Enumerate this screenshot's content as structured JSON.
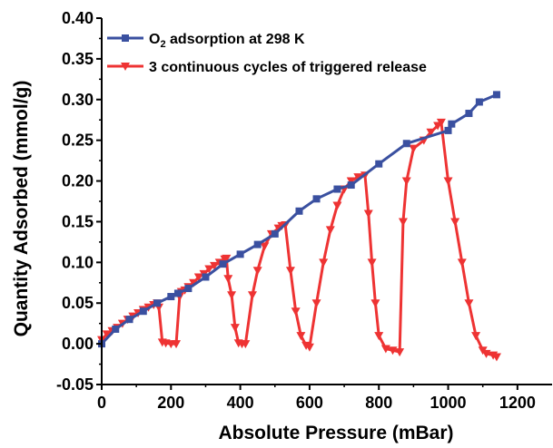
{
  "chart_data": {
    "type": "line",
    "xlabel": "Absolute Pressure (mBar)",
    "ylabel": "Quantity Adsorbed (mmol/g)",
    "xlim": [
      0,
      1300
    ],
    "ylim": [
      -0.05,
      0.4
    ],
    "x_ticks": [
      0,
      200,
      400,
      600,
      800,
      1000,
      1200
    ],
    "y_ticks": [
      -0.05,
      0.0,
      0.05,
      0.1,
      0.15,
      0.2,
      0.25,
      0.3,
      0.35,
      0.4
    ],
    "x_tick_labels": [
      "0",
      "200",
      "400",
      "600",
      "800",
      "1000",
      "1200"
    ],
    "y_tick_labels": [
      "-0.05",
      "0.00",
      "0.05",
      "0.10",
      "0.15",
      "0.20",
      "0.25",
      "0.30",
      "0.35",
      "0.40"
    ],
    "grid": false,
    "legend_position": "top-left",
    "series": [
      {
        "name": "O2 adsorption at 298 K",
        "name_main": "O",
        "name_sub": "2",
        "name_rest": " adsorption at 298 K",
        "color": "#3a50a0",
        "marker": "square",
        "x": [
          0,
          40,
          80,
          120,
          160,
          200,
          220,
          250,
          300,
          350,
          400,
          450,
          500,
          570,
          620,
          680,
          720,
          800,
          880,
          1000,
          1010,
          1060,
          1090,
          1140
        ],
        "y": [
          0.0,
          0.018,
          0.03,
          0.04,
          0.05,
          0.058,
          0.062,
          0.068,
          0.082,
          0.098,
          0.11,
          0.122,
          0.135,
          0.163,
          0.178,
          0.19,
          0.195,
          0.221,
          0.246,
          0.262,
          0.27,
          0.283,
          0.297,
          0.306
        ]
      },
      {
        "name": "3 continuous cycles of triggered release",
        "color": "#ee3333",
        "marker": "triangle-down",
        "x": [
          0,
          15,
          30,
          45,
          60,
          75,
          90,
          105,
          120,
          135,
          150,
          160,
          165,
          175,
          185,
          200,
          215,
          225,
          230,
          240,
          250,
          265,
          280,
          295,
          310,
          325,
          340,
          355,
          360,
          365,
          375,
          385,
          395,
          405,
          415,
          435,
          450,
          470,
          490,
          510,
          520,
          530,
          545,
          560,
          575,
          590,
          600,
          620,
          640,
          660,
          680,
          700,
          720,
          740,
          760,
          770,
          780,
          790,
          800,
          820,
          840,
          860,
          870,
          880,
          900,
          930,
          950,
          970,
          980,
          1000,
          1020,
          1040,
          1060,
          1080,
          1100,
          1110,
          1130,
          1140
        ],
        "y": [
          0.005,
          0.012,
          0.016,
          0.02,
          0.025,
          0.03,
          0.034,
          0.038,
          0.042,
          0.045,
          0.048,
          0.05,
          0.045,
          0.002,
          0.001,
          0.0,
          0.0,
          0.058,
          0.064,
          0.066,
          0.07,
          0.075,
          0.082,
          0.086,
          0.092,
          0.096,
          0.1,
          0.104,
          0.105,
          0.08,
          0.06,
          0.02,
          0.001,
          0.0,
          0.0,
          0.06,
          0.09,
          0.12,
          0.135,
          0.142,
          0.145,
          0.146,
          0.09,
          0.04,
          0.01,
          -0.002,
          -0.004,
          0.05,
          0.1,
          0.14,
          0.17,
          0.19,
          0.2,
          0.205,
          0.207,
          0.16,
          0.1,
          0.05,
          0.01,
          -0.006,
          -0.008,
          -0.01,
          0.15,
          0.2,
          0.24,
          0.25,
          0.26,
          0.268,
          0.272,
          0.2,
          0.15,
          0.1,
          0.05,
          0.01,
          -0.008,
          -0.012,
          -0.014,
          -0.016
        ]
      }
    ]
  }
}
